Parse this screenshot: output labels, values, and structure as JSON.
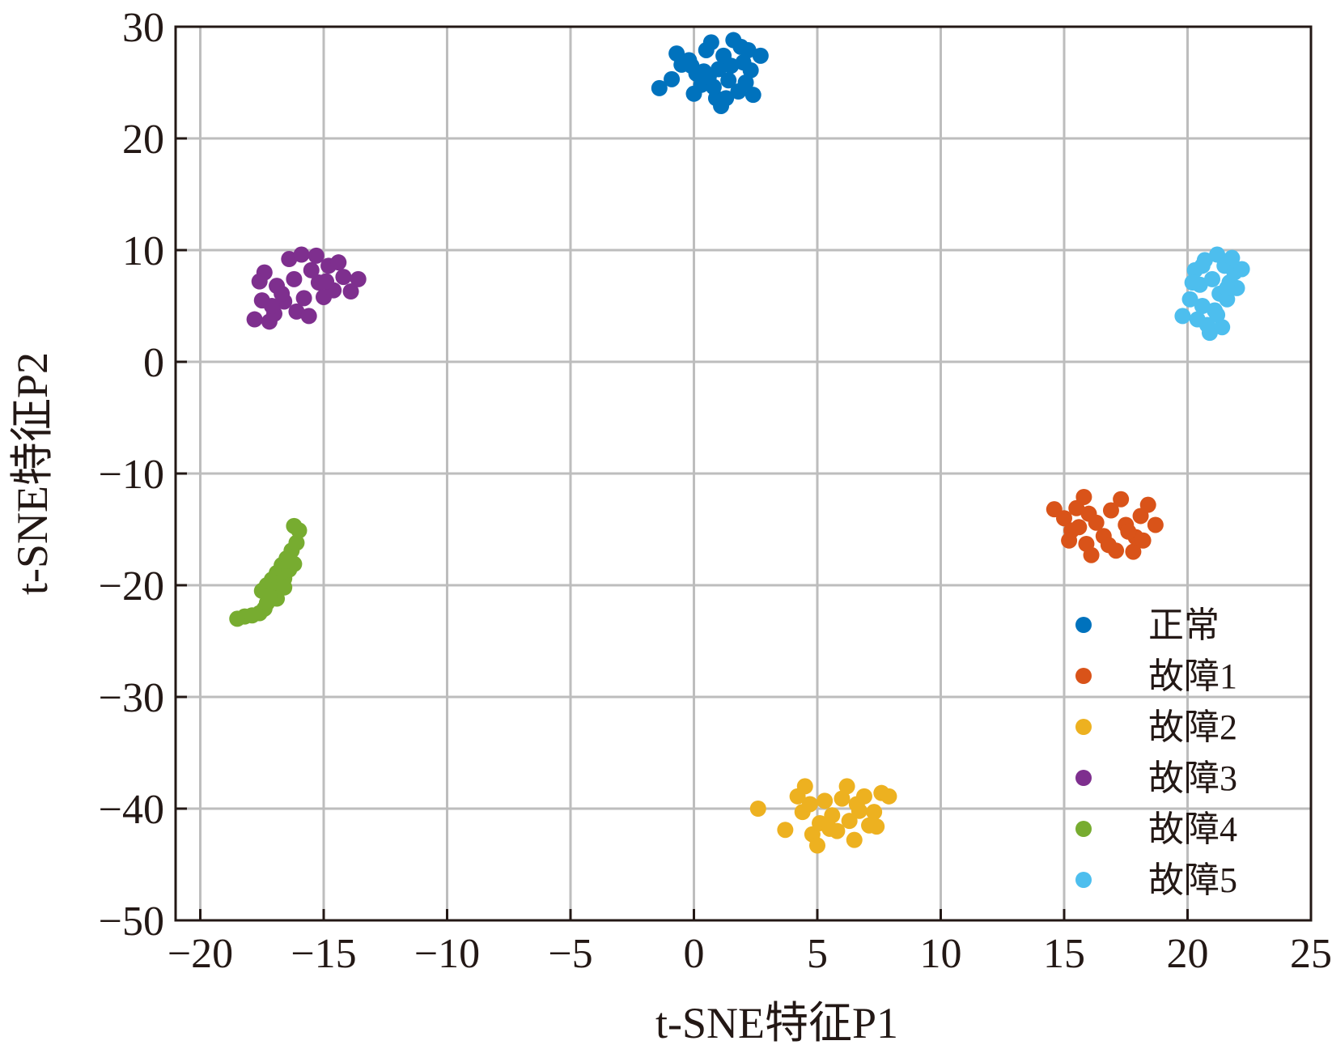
{
  "chart_data": {
    "type": "scatter",
    "title": "",
    "xlabel": "t-SNE特征P1",
    "ylabel": "t-SNE特征P2",
    "xlim": [
      -21,
      25
    ],
    "ylim": [
      -50,
      30
    ],
    "xticks": [
      -20,
      -15,
      -10,
      -5,
      0,
      5,
      10,
      15,
      20,
      25
    ],
    "yticks": [
      -50,
      -40,
      -30,
      -20,
      -10,
      0,
      10,
      20,
      30
    ],
    "xtick_labels": [
      "−20",
      "−15",
      "−10",
      "−5",
      "0",
      "5",
      "10",
      "15",
      "20",
      "25"
    ],
    "ytick_labels": [
      "−50",
      "−40",
      "−30",
      "−20",
      "−10",
      "0",
      "10",
      "20",
      "30"
    ],
    "grid": true,
    "legend": "bottom-right",
    "series": [
      {
        "name": "正常",
        "color": "#0072BD",
        "points": [
          [
            -1.4,
            24.5
          ],
          [
            -0.9,
            25.3
          ],
          [
            -0.5,
            26.6
          ],
          [
            -0.7,
            27.6
          ],
          [
            -0.2,
            27.0
          ],
          [
            0.1,
            25.8
          ],
          [
            0.3,
            24.8
          ],
          [
            0.5,
            27.9
          ],
          [
            0.7,
            28.6
          ],
          [
            0.9,
            23.6
          ],
          [
            1.0,
            26.2
          ],
          [
            1.2,
            27.4
          ],
          [
            1.4,
            25.2
          ],
          [
            1.6,
            28.8
          ],
          [
            1.8,
            24.2
          ],
          [
            2.0,
            26.8
          ],
          [
            2.2,
            27.9
          ],
          [
            2.4,
            23.9
          ],
          [
            2.7,
            27.4
          ],
          [
            0.0,
            24.0
          ],
          [
            1.1,
            22.9
          ],
          [
            0.4,
            26.0
          ],
          [
            1.5,
            26.5
          ],
          [
            2.1,
            25.0
          ],
          [
            0.8,
            24.6
          ],
          [
            1.9,
            28.2
          ],
          [
            -0.1,
            26.5
          ],
          [
            1.3,
            23.6
          ],
          [
            0.6,
            25.5
          ],
          [
            2.3,
            26.1
          ]
        ]
      },
      {
        "name": "故障1",
        "color": "#D95319",
        "points": [
          [
            14.6,
            -13.2
          ],
          [
            15.0,
            -14.0
          ],
          [
            15.3,
            -15.1
          ],
          [
            15.5,
            -13.1
          ],
          [
            15.8,
            -12.1
          ],
          [
            15.9,
            -16.3
          ],
          [
            16.1,
            -17.3
          ],
          [
            16.3,
            -14.4
          ],
          [
            16.6,
            -15.6
          ],
          [
            16.9,
            -13.3
          ],
          [
            17.1,
            -16.9
          ],
          [
            17.3,
            -12.3
          ],
          [
            17.5,
            -14.6
          ],
          [
            17.8,
            -17.0
          ],
          [
            17.9,
            -15.7
          ],
          [
            18.1,
            -13.8
          ],
          [
            18.4,
            -12.8
          ],
          [
            18.7,
            -14.6
          ],
          [
            16.0,
            -13.6
          ],
          [
            17.6,
            -15.2
          ],
          [
            15.2,
            -16.0
          ],
          [
            16.8,
            -16.4
          ],
          [
            18.2,
            -16.0
          ],
          [
            15.6,
            -14.8
          ]
        ]
      },
      {
        "name": "故障2",
        "color": "#EDB120",
        "points": [
          [
            2.6,
            -40.0
          ],
          [
            3.7,
            -41.9
          ],
          [
            4.2,
            -38.9
          ],
          [
            4.4,
            -40.3
          ],
          [
            4.5,
            -38.0
          ],
          [
            4.8,
            -42.3
          ],
          [
            5.0,
            -43.3
          ],
          [
            5.1,
            -41.3
          ],
          [
            5.3,
            -39.3
          ],
          [
            5.6,
            -40.6
          ],
          [
            5.8,
            -42.0
          ],
          [
            6.0,
            -39.1
          ],
          [
            6.2,
            -38.0
          ],
          [
            6.3,
            -41.1
          ],
          [
            6.5,
            -42.8
          ],
          [
            6.7,
            -40.2
          ],
          [
            6.9,
            -38.9
          ],
          [
            7.1,
            -41.5
          ],
          [
            7.3,
            -40.3
          ],
          [
            7.6,
            -38.6
          ],
          [
            7.9,
            -38.9
          ],
          [
            5.5,
            -41.8
          ],
          [
            6.6,
            -39.6
          ],
          [
            4.7,
            -39.6
          ],
          [
            7.4,
            -41.6
          ]
        ]
      },
      {
        "name": "故障3",
        "color": "#7E2F8E",
        "points": [
          [
            -17.8,
            3.8
          ],
          [
            -17.5,
            5.5
          ],
          [
            -17.4,
            8.0
          ],
          [
            -17.2,
            3.6
          ],
          [
            -17.0,
            4.3
          ],
          [
            -16.9,
            6.8
          ],
          [
            -16.6,
            5.4
          ],
          [
            -16.4,
            9.2
          ],
          [
            -16.1,
            4.5
          ],
          [
            -15.9,
            9.6
          ],
          [
            -15.8,
            5.7
          ],
          [
            -15.6,
            4.1
          ],
          [
            -15.3,
            9.5
          ],
          [
            -15.2,
            7.1
          ],
          [
            -15.0,
            5.8
          ],
          [
            -14.8,
            8.6
          ],
          [
            -14.6,
            6.4
          ],
          [
            -14.4,
            8.9
          ],
          [
            -14.2,
            7.6
          ],
          [
            -13.9,
            6.3
          ],
          [
            -13.6,
            7.4
          ],
          [
            -17.6,
            7.2
          ],
          [
            -16.2,
            7.4
          ],
          [
            -15.5,
            8.2
          ],
          [
            -16.7,
            6.1
          ],
          [
            -14.9,
            7.2
          ],
          [
            -17.1,
            5.0
          ]
        ]
      },
      {
        "name": "故障4",
        "color": "#77AC30",
        "points": [
          [
            -18.5,
            -23.0
          ],
          [
            -18.2,
            -22.8
          ],
          [
            -17.9,
            -22.7
          ],
          [
            -17.6,
            -22.5
          ],
          [
            -17.4,
            -22.1
          ],
          [
            -17.3,
            -21.6
          ],
          [
            -17.5,
            -20.5
          ],
          [
            -17.3,
            -20.0
          ],
          [
            -17.0,
            -20.6
          ],
          [
            -17.1,
            -19.5
          ],
          [
            -16.9,
            -18.9
          ],
          [
            -16.8,
            -19.8
          ],
          [
            -16.7,
            -18.2
          ],
          [
            -16.6,
            -19.4
          ],
          [
            -16.5,
            -17.6
          ],
          [
            -16.4,
            -18.6
          ],
          [
            -16.3,
            -16.9
          ],
          [
            -16.2,
            -18.1
          ],
          [
            -16.1,
            -16.2
          ],
          [
            -16.2,
            -14.7
          ],
          [
            -16.0,
            -15.1
          ],
          [
            -16.9,
            -21.2
          ],
          [
            -16.6,
            -20.2
          ],
          [
            -16.4,
            -17.8
          ],
          [
            -17.2,
            -21.0
          ]
        ]
      },
      {
        "name": "故障5",
        "color": "#4DBEEE",
        "points": [
          [
            19.8,
            4.1
          ],
          [
            20.1,
            5.6
          ],
          [
            20.3,
            8.2
          ],
          [
            20.4,
            3.8
          ],
          [
            20.5,
            6.9
          ],
          [
            20.6,
            5.0
          ],
          [
            20.7,
            9.1
          ],
          [
            20.8,
            3.3
          ],
          [
            20.9,
            2.6
          ],
          [
            21.0,
            7.4
          ],
          [
            21.1,
            4.6
          ],
          [
            21.2,
            9.6
          ],
          [
            21.3,
            6.1
          ],
          [
            21.4,
            3.1
          ],
          [
            21.5,
            8.6
          ],
          [
            21.6,
            5.6
          ],
          [
            21.7,
            7.1
          ],
          [
            21.8,
            9.3
          ],
          [
            21.9,
            8.0
          ],
          [
            22.0,
            6.6
          ],
          [
            22.2,
            8.3
          ],
          [
            20.2,
            7.1
          ],
          [
            21.2,
            4.2
          ],
          [
            20.6,
            8.6
          ],
          [
            21.6,
            6.6
          ]
        ]
      }
    ]
  }
}
